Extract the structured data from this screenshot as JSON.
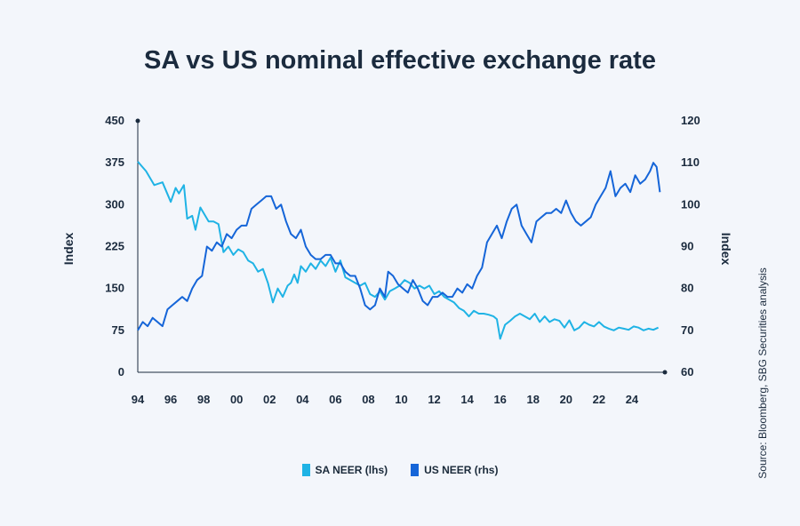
{
  "title": "SA vs US nominal effective exchange rate",
  "source": "Source: Bloomberg, SBG Securities analysis",
  "colors": {
    "sa": "#1fb3e5",
    "us": "#1565d8",
    "axis": "#1b2b3e"
  },
  "chart_data": {
    "type": "line",
    "title": "SA vs US nominal effective exchange rate",
    "xlabel": "",
    "ylabel_left": "Index",
    "ylabel_right": "Index",
    "x_ticks": [
      "94",
      "96",
      "98",
      "00",
      "02",
      "04",
      "06",
      "08",
      "10",
      "12",
      "14",
      "16",
      "18",
      "20",
      "22",
      "24"
    ],
    "x_range": [
      1994,
      2026
    ],
    "y_left_range": [
      0,
      450
    ],
    "y_left_ticks": [
      "450",
      "375",
      "300",
      "225",
      "150",
      "75",
      "0"
    ],
    "y_right_range": [
      60,
      120
    ],
    "y_right_ticks": [
      "120",
      "110",
      "100",
      "90",
      "80",
      "70",
      "60"
    ],
    "legend_position": "bottom",
    "series": [
      {
        "name": "SA NEER (lhs)",
        "axis": "left",
        "x": [
          1994.0,
          1994.5,
          1995.0,
          1995.5,
          1996.0,
          1996.3,
          1996.5,
          1996.8,
          1997.0,
          1997.3,
          1997.5,
          1997.8,
          1998.0,
          1998.3,
          1998.6,
          1998.9,
          1999.2,
          1999.5,
          1999.8,
          2000.1,
          2000.4,
          2000.7,
          2001.0,
          2001.3,
          2001.6,
          2001.9,
          2002.2,
          2002.5,
          2002.8,
          2003.1,
          2003.3,
          2003.5,
          2003.7,
          2003.9,
          2004.2,
          2004.5,
          2004.8,
          2005.1,
          2005.4,
          2005.7,
          2006.0,
          2006.3,
          2006.6,
          2006.9,
          2007.2,
          2007.5,
          2007.8,
          2008.1,
          2008.4,
          2008.7,
          2009.0,
          2009.3,
          2009.6,
          2009.9,
          2010.2,
          2010.5,
          2010.8,
          2011.1,
          2011.4,
          2011.7,
          2012.0,
          2012.3,
          2012.6,
          2012.9,
          2013.2,
          2013.5,
          2013.8,
          2014.1,
          2014.4,
          2014.7,
          2015.0,
          2015.3,
          2015.6,
          2015.8,
          2016.0,
          2016.3,
          2016.6,
          2016.9,
          2017.2,
          2017.5,
          2017.8,
          2018.1,
          2018.4,
          2018.7,
          2019.0,
          2019.3,
          2019.6,
          2019.9,
          2020.2,
          2020.5,
          2020.8,
          2021.1,
          2021.4,
          2021.7,
          2022.0,
          2022.3,
          2022.6,
          2022.9,
          2023.2,
          2023.5,
          2023.8,
          2024.1,
          2024.4,
          2024.7,
          2025.0,
          2025.3,
          2025.6
        ],
        "y": [
          377,
          360,
          335,
          340,
          305,
          330,
          320,
          335,
          275,
          280,
          255,
          295,
          285,
          270,
          270,
          265,
          215,
          225,
          210,
          220,
          215,
          200,
          195,
          180,
          185,
          160,
          125,
          150,
          135,
          155,
          160,
          175,
          160,
          190,
          180,
          195,
          185,
          200,
          190,
          205,
          180,
          200,
          170,
          165,
          160,
          155,
          160,
          140,
          135,
          145,
          130,
          145,
          150,
          155,
          165,
          160,
          150,
          155,
          150,
          155,
          140,
          145,
          135,
          130,
          125,
          115,
          110,
          100,
          110,
          105,
          105,
          103,
          100,
          95,
          60,
          85,
          92,
          100,
          105,
          100,
          95,
          105,
          90,
          100,
          90,
          95,
          92,
          80,
          93,
          75,
          80,
          90,
          85,
          82,
          90,
          82,
          78,
          75,
          80,
          78,
          76,
          82,
          80,
          75,
          78,
          76,
          80
        ]
      },
      {
        "name": "US NEER (rhs)",
        "axis": "right",
        "x": [
          1994.0,
          1994.3,
          1994.6,
          1994.9,
          1995.2,
          1995.5,
          1995.8,
          1996.1,
          1996.4,
          1996.7,
          1997.0,
          1997.3,
          1997.6,
          1997.9,
          1998.2,
          1998.5,
          1998.8,
          1999.1,
          1999.4,
          1999.7,
          2000.0,
          2000.3,
          2000.6,
          2000.9,
          2001.2,
          2001.5,
          2001.8,
          2002.1,
          2002.4,
          2002.7,
          2003.0,
          2003.3,
          2003.6,
          2003.9,
          2004.2,
          2004.5,
          2004.8,
          2005.1,
          2005.4,
          2005.7,
          2006.0,
          2006.3,
          2006.6,
          2006.9,
          2007.2,
          2007.5,
          2007.8,
          2008.1,
          2008.4,
          2008.7,
          2009.0,
          2009.2,
          2009.5,
          2009.8,
          2010.1,
          2010.4,
          2010.7,
          2011.0,
          2011.3,
          2011.6,
          2011.9,
          2012.2,
          2012.5,
          2012.8,
          2013.1,
          2013.4,
          2013.7,
          2014.0,
          2014.3,
          2014.6,
          2014.9,
          2015.2,
          2015.5,
          2015.8,
          2016.1,
          2016.4,
          2016.7,
          2017.0,
          2017.3,
          2017.6,
          2017.9,
          2018.2,
          2018.5,
          2018.8,
          2019.1,
          2019.4,
          2019.7,
          2020.0,
          2020.3,
          2020.6,
          2020.9,
          2021.2,
          2021.5,
          2021.8,
          2022.1,
          2022.4,
          2022.7,
          2023.0,
          2023.3,
          2023.6,
          2023.9,
          2024.2,
          2024.5,
          2024.8,
          2025.1,
          2025.3,
          2025.5,
          2025.7
        ],
        "y": [
          70,
          72,
          71,
          73,
          72,
          71,
          75,
          76,
          77,
          78,
          77,
          80,
          82,
          83,
          90,
          89,
          91,
          90,
          93,
          92,
          94,
          95,
          95,
          99,
          100,
          101,
          102,
          102,
          99,
          100,
          96,
          93,
          92,
          94,
          90,
          88,
          87,
          87,
          88,
          88,
          86,
          86,
          84,
          83,
          83,
          80,
          76,
          75,
          76,
          80,
          78,
          84,
          83,
          81,
          80,
          79,
          82,
          80,
          77,
          76,
          78,
          78,
          79,
          78,
          78,
          80,
          79,
          81,
          80,
          83,
          85,
          91,
          93,
          95,
          92,
          96,
          99,
          100,
          95,
          93,
          91,
          96,
          97,
          98,
          98,
          99,
          98,
          101,
          98,
          96,
          95,
          96,
          97,
          100,
          102,
          104,
          108,
          102,
          104,
          105,
          103,
          107,
          105,
          106,
          108,
          110,
          109,
          103
        ]
      }
    ]
  }
}
